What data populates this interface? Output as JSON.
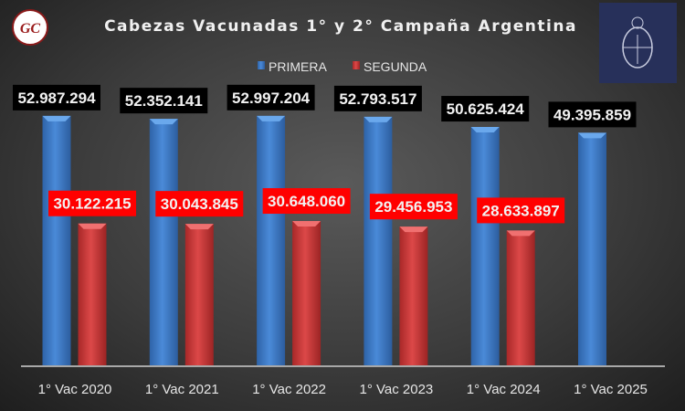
{
  "logos": {
    "left_text": "GC",
    "right": "Escudo Argentina"
  },
  "chart_data": {
    "type": "bar",
    "title": "Cabezas Vacunadas 1° y 2° Campaña Argentina",
    "xlabel": "",
    "ylabel": "",
    "ylim": [
      0,
      58200000
    ],
    "grid": false,
    "legend": "top-center",
    "categories": [
      "1° Vac 2020",
      "1° Vac 2021",
      "1° Vac 2022",
      "1° Vac 2023",
      "1° Vac 2024",
      "1° Vac 2025"
    ],
    "series": [
      {
        "name": "PRIMERA",
        "color": "#3a78c8",
        "values": [
          52987294,
          52352141,
          52997204,
          52793517,
          50625424,
          49395859
        ],
        "labels": [
          "52.987.294",
          "52.352.141",
          "52.997.204",
          "52.793.517",
          "50.625.424",
          "49.395.859"
        ]
      },
      {
        "name": "SEGUNDA",
        "color": "#d03c3c",
        "values": [
          30122215,
          30043845,
          30648060,
          29456953,
          28633897,
          null
        ],
        "labels": [
          "30.122.215",
          "30.043.845",
          "30.648.060",
          "29.456.953",
          "28.633.897",
          null
        ]
      }
    ]
  }
}
